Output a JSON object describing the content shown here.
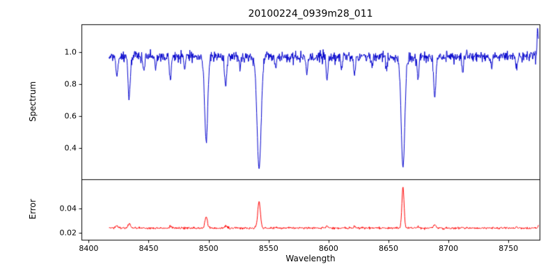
{
  "chart_data": {
    "type": "line",
    "title": "20100224_0939m28_011",
    "xlabel": "Wavelength",
    "grid": false,
    "legend": "none",
    "xlim": [
      8394,
      8776
    ],
    "x_ticks": [
      "8400",
      "8450",
      "8500",
      "8550",
      "8600",
      "8650",
      "8700",
      "8750"
    ],
    "x_data_range": [
      8417,
      8775
    ],
    "n_points": 1080,
    "noise_seed": 12345,
    "panels": [
      {
        "name": "spectrum",
        "ylabel": "Spectrum",
        "line_color": "#0000cc",
        "ylim": [
          0.204,
          1.174
        ],
        "y_ticks": [
          "0.4",
          "0.6",
          "0.8",
          "1.0"
        ],
        "continuum": 0.97,
        "noise_sigma": 0.017,
        "absorption_lines": [
          [
            8423.5,
            0.13,
            0.8
          ],
          [
            8433.8,
            0.27,
            0.9
          ],
          [
            8446.0,
            0.09,
            0.7
          ],
          [
            8456.0,
            0.07,
            0.6
          ],
          [
            8468.0,
            0.14,
            0.8
          ],
          [
            8480.0,
            0.08,
            0.6
          ],
          [
            8498.0,
            0.55,
            1.3
          ],
          [
            8514.2,
            0.18,
            0.9
          ],
          [
            8526.0,
            0.08,
            0.6
          ],
          [
            8542.1,
            0.72,
            1.7
          ],
          [
            8556.0,
            0.08,
            0.6
          ],
          [
            8582.0,
            0.1,
            0.7
          ],
          [
            8598.8,
            0.14,
            0.8
          ],
          [
            8611.0,
            0.09,
            0.6
          ],
          [
            8621.6,
            0.12,
            0.7
          ],
          [
            8636.0,
            0.07,
            0.6
          ],
          [
            8648.4,
            0.09,
            0.6
          ],
          [
            8662.1,
            0.71,
            1.5
          ],
          [
            8674.7,
            0.15,
            0.7
          ],
          [
            8688.6,
            0.26,
            0.9
          ],
          [
            8712.0,
            0.1,
            0.6
          ],
          [
            8736.0,
            0.08,
            0.6
          ],
          [
            8757.0,
            0.09,
            0.6
          ]
        ],
        "emission_spikes": [
          [
            8774.5,
            0.17,
            0.6
          ]
        ]
      },
      {
        "name": "error",
        "ylabel": "Error",
        "line_color": "#ff0000",
        "ylim": [
          0.0143,
          0.0643
        ],
        "y_ticks": [
          "0.02",
          "0.04"
        ],
        "baseline": 0.024,
        "noise_sigma": 0.00045,
        "peaks": [
          [
            8423.5,
            0.0018,
            0.8
          ],
          [
            8433.8,
            0.0035,
            0.9
          ],
          [
            8468.0,
            0.0015,
            0.8
          ],
          [
            8498.0,
            0.0095,
            1.0
          ],
          [
            8514.2,
            0.002,
            0.8
          ],
          [
            8542.1,
            0.022,
            1.1
          ],
          [
            8598.8,
            0.0015,
            0.8
          ],
          [
            8621.6,
            0.0012,
            0.7
          ],
          [
            8662.1,
            0.034,
            0.9
          ],
          [
            8674.7,
            0.0015,
            0.7
          ],
          [
            8688.6,
            0.003,
            0.9
          ],
          [
            8712.0,
            0.001,
            0.6
          ],
          [
            8757.0,
            0.0012,
            0.6
          ],
          [
            8775.0,
            0.002,
            0.5
          ]
        ]
      }
    ]
  }
}
